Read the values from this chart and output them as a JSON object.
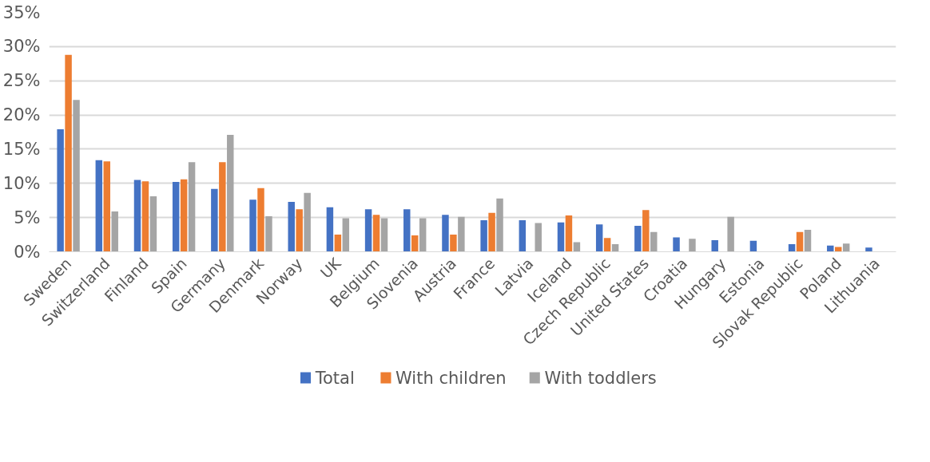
{
  "chart_data": {
    "type": "bar",
    "categories": [
      "Sweden",
      "Switzerland",
      "Finland",
      "Spain",
      "Germany",
      "Denmark",
      "Norway",
      "UK",
      "Belgium",
      "Slovenia",
      "Austria",
      "France",
      "Latvia",
      "Iceland",
      "Czech Republic",
      "United States",
      "Croatia",
      "Hungary",
      "Estonia",
      "Slovak Republic",
      "Poland",
      "Lithuania"
    ],
    "series": [
      {
        "name": "Total",
        "color": "#4472c4",
        "values": [
          17.9,
          13.4,
          10.5,
          10.2,
          9.2,
          7.6,
          7.3,
          6.5,
          6.2,
          6.2,
          5.4,
          4.6,
          4.6,
          4.3,
          4.0,
          3.8,
          2.1,
          1.7,
          1.6,
          1.1,
          0.9,
          0.6
        ]
      },
      {
        "name": "With children",
        "color": "#ed7d31",
        "values": [
          28.8,
          13.2,
          10.3,
          10.6,
          13.1,
          9.3,
          6.2,
          2.5,
          5.4,
          2.4,
          2.5,
          5.7,
          null,
          5.3,
          2.0,
          6.1,
          null,
          null,
          null,
          2.9,
          0.7,
          null
        ]
      },
      {
        "name": "With toddlers",
        "color": "#a5a5a5",
        "values": [
          22.2,
          5.9,
          8.1,
          13.1,
          17.1,
          5.2,
          8.6,
          4.9,
          4.9,
          4.9,
          5.1,
          7.8,
          4.2,
          1.4,
          1.1,
          2.9,
          1.9,
          5.1,
          null,
          3.2,
          1.2,
          null
        ]
      }
    ],
    "ylim": [
      0,
      35
    ],
    "yticks": [
      {
        "value": 0,
        "label": "0%"
      },
      {
        "value": 5,
        "label": "5%"
      },
      {
        "value": 10,
        "label": "10%"
      },
      {
        "value": 15,
        "label": "15%"
      },
      {
        "value": 20,
        "label": "20%"
      },
      {
        "value": 25,
        "label": "25%"
      },
      {
        "value": 30,
        "label": "30%"
      },
      {
        "value": 35,
        "label": "35%"
      }
    ],
    "grid": "y",
    "legend": "bottom"
  }
}
